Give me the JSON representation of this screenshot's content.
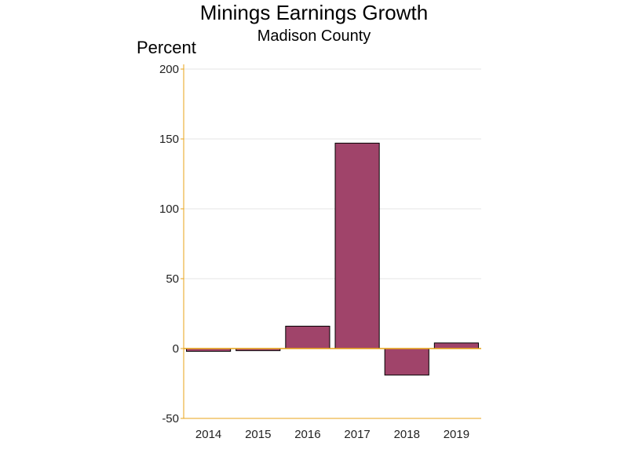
{
  "chart_data": {
    "type": "bar",
    "title": "Minings Earnings Growth",
    "subtitle": "Madison County",
    "ylabel": "Percent",
    "xlabel": "",
    "categories": [
      "2014",
      "2015",
      "2016",
      "2017",
      "2018",
      "2019"
    ],
    "values": [
      -2,
      -1.5,
      16,
      147,
      -19,
      4
    ],
    "ylim": [
      -50,
      200
    ],
    "yticks": [
      -50,
      0,
      50,
      100,
      150,
      200
    ],
    "grid": true,
    "colors": {
      "bar_fill": "#A0446A",
      "bar_stroke": "#000000",
      "axis": "#E8A317",
      "zero_line": "#E8A317",
      "grid": "#E6E6E6"
    }
  }
}
